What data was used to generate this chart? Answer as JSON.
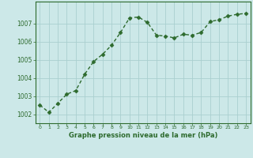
{
  "x": [
    0,
    1,
    2,
    3,
    4,
    5,
    6,
    7,
    8,
    9,
    10,
    11,
    12,
    13,
    14,
    15,
    16,
    17,
    18,
    19,
    20,
    21,
    22,
    23
  ],
  "y": [
    1002.5,
    1002.1,
    1002.6,
    1003.1,
    1003.3,
    1004.2,
    1004.9,
    1005.3,
    1005.8,
    1006.5,
    1007.3,
    1007.35,
    1007.05,
    1006.35,
    1006.3,
    1006.2,
    1006.4,
    1006.35,
    1006.5,
    1007.1,
    1007.2,
    1007.4,
    1007.5,
    1007.55
  ],
  "line_color": "#2d6a2d",
  "marker_color": "#2d6a2d",
  "bg_color": "#cce8e8",
  "grid_color": "#aacfcf",
  "xlabel": "Graphe pression niveau de la mer (hPa)",
  "xlabel_color": "#2d6a2d",
  "tick_color": "#2d6a2d",
  "ylim_min": 1001.5,
  "ylim_max": 1008.2,
  "yticks": [
    1002,
    1003,
    1004,
    1005,
    1006,
    1007
  ],
  "xticks": [
    0,
    1,
    2,
    3,
    4,
    5,
    6,
    7,
    8,
    9,
    10,
    11,
    12,
    13,
    14,
    15,
    16,
    17,
    18,
    19,
    20,
    21,
    22,
    23
  ],
  "linewidth": 1.0,
  "markersize": 2.5
}
